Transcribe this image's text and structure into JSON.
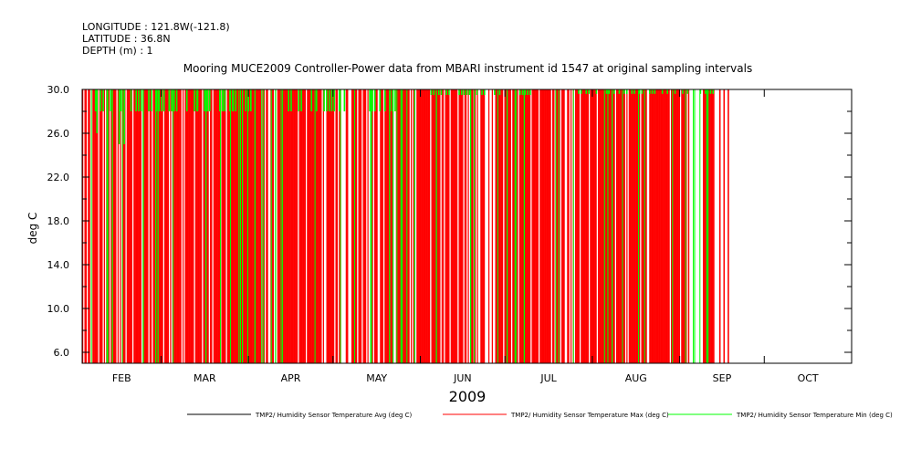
{
  "header": {
    "longitude": "LONGITUDE : 121.8W(-121.8)",
    "latitude": "LATITUDE : 36.8N",
    "depth": "DEPTH (m) : 1"
  },
  "chart_data": {
    "type": "line",
    "title": "Mooring MUCE2009 Controller-Power data from MBARI instrument id 1547 at original sampling intervals",
    "xlabel": "2009",
    "ylabel": "deg C",
    "ylim": [
      5.0,
      30.0
    ],
    "yticks": [
      "6.0",
      "10.0",
      "14.0",
      "18.0",
      "22.0",
      "26.0",
      "30.0"
    ],
    "x_categories": [
      "FEB",
      "MAR",
      "APR",
      "MAY",
      "JUN",
      "JUL",
      "AUG",
      "SEP",
      "OCT"
    ],
    "grid": false,
    "legend_position": "bottom",
    "colors": {
      "avg": "#000000",
      "max": "#ff0000",
      "min": "#00ff00"
    },
    "series": [
      {
        "name": "TMP2/ Humidity Sensor Temperature Avg (deg C)",
        "color": "#000000",
        "points": [
          [
            "Feb 1",
            30.0
          ],
          [
            "Oct 31",
            30.0
          ]
        ]
      },
      {
        "name": "TMP2/ Humidity Sensor Temperature Max (deg C)",
        "color": "#ff0000",
        "segments_active": [
          [
            "Feb 1",
            "Sep 13"
          ]
        ],
        "range": [
          5.0,
          30.0
        ]
      },
      {
        "name": "TMP2/ Humidity Sensor Temperature Min (deg C)",
        "color": "#00ff00",
        "typical_min": 28.0,
        "low_excursions": [
          [
            "Feb 11",
            26.0
          ],
          [
            "Feb 13",
            25.0
          ],
          [
            "Mar 10",
            28.0
          ],
          [
            "Apr 15",
            28.0
          ],
          [
            "May 5",
            28.0
          ]
        ],
        "range": [
          5.0,
          30.0
        ]
      }
    ]
  }
}
